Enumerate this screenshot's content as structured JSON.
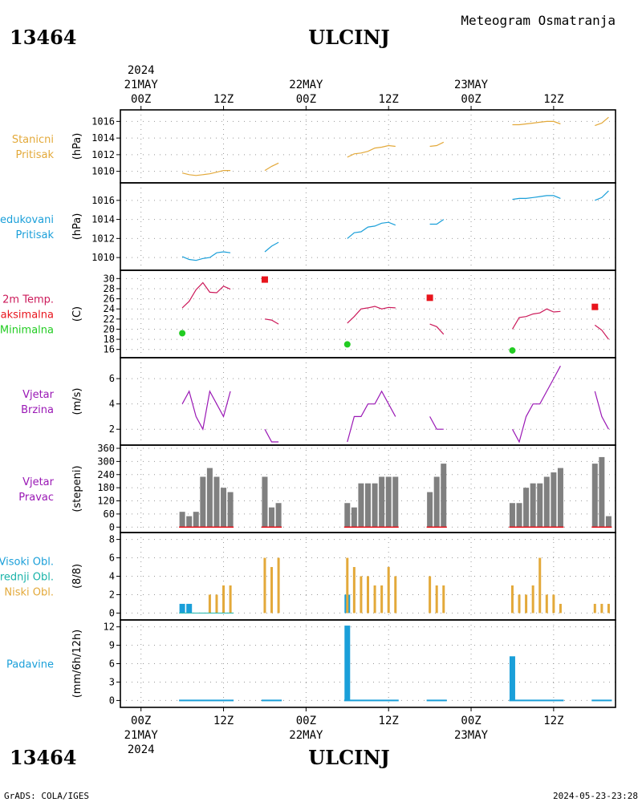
{
  "header": {
    "station_id": "13464",
    "station_name": "ULCINJ",
    "product": "Meteogram Osmatranja"
  },
  "footer": {
    "station_id": "13464",
    "station_name": "ULCINJ",
    "credit": "GrADS: COLA/IGES",
    "timestamp": "2024-05-23-23:28"
  },
  "time_axis": {
    "top_year": "2024",
    "ticks": [
      {
        "t": 0,
        "label": "00Z",
        "date": "21MAY",
        "year": "2024"
      },
      {
        "t": 12,
        "label": "12Z"
      },
      {
        "t": 24,
        "label": "00Z",
        "date": "22MAY"
      },
      {
        "t": 36,
        "label": "12Z"
      },
      {
        "t": 48,
        "label": "00Z",
        "date": "23MAY"
      },
      {
        "t": 60,
        "label": "12Z"
      }
    ],
    "range": [
      -3,
      69
    ],
    "bottom_year": "2024"
  },
  "colors": {
    "orange": "#e3a93a",
    "cyan": "#1a9fd9",
    "magenta": "#cc1a5a",
    "red": "#e8141c",
    "green": "#22cc22",
    "purple": "#9a18b5",
    "teal": "#18b3a8",
    "gray": "#808080"
  },
  "chart_data": [
    {
      "id": "pressure_station",
      "type": "line",
      "labels": [
        "Stanicni",
        "Pritisak"
      ],
      "label_color": "orange",
      "ylabel": "(hPa)",
      "ylim": [
        1009,
        1017
      ],
      "yticks": [
        1010,
        1012,
        1014,
        1016
      ],
      "grid": true,
      "series": [
        {
          "color": "orange",
          "segments": [
            [
              [
                6,
                1009.8
              ],
              [
                7,
                1009.6
              ],
              [
                8,
                1009.5
              ],
              [
                9,
                1009.6
              ],
              [
                10,
                1009.7
              ],
              [
                11,
                1009.9
              ],
              [
                12,
                1010.1
              ],
              [
                13,
                1010.1
              ]
            ],
            [
              [
                18,
                1010.1
              ],
              [
                19,
                1010.6
              ],
              [
                20,
                1011.0
              ]
            ],
            [
              [
                30,
                1011.7
              ],
              [
                31,
                1012.1
              ],
              [
                32,
                1012.2
              ],
              [
                33,
                1012.4
              ],
              [
                34,
                1012.8
              ],
              [
                35,
                1012.9
              ],
              [
                36,
                1013.1
              ],
              [
                37,
                1013.0
              ]
            ],
            [
              [
                42,
                1013.0
              ],
              [
                43,
                1013.1
              ],
              [
                44,
                1013.5
              ]
            ],
            [
              [
                54,
                1015.6
              ],
              [
                55,
                1015.6
              ],
              [
                56,
                1015.7
              ],
              [
                57,
                1015.8
              ],
              [
                58,
                1015.9
              ],
              [
                59,
                1016.0
              ],
              [
                60,
                1016.0
              ],
              [
                61,
                1015.7
              ]
            ],
            [
              [
                66,
                1015.5
              ],
              [
                67,
                1015.8
              ],
              [
                68,
                1016.5
              ]
            ]
          ]
        }
      ]
    },
    {
      "id": "pressure_reduced",
      "type": "line",
      "labels": [
        "Redukovani",
        "Pritisak"
      ],
      "label_color": "cyan",
      "ylabel": "(hPa)",
      "ylim": [
        1009,
        1017.5
      ],
      "yticks": [
        1010,
        1012,
        1014,
        1016
      ],
      "grid": true,
      "series": [
        {
          "color": "cyan",
          "segments": [
            [
              [
                6,
                1010.1
              ],
              [
                7,
                1009.8
              ],
              [
                8,
                1009.7
              ],
              [
                9,
                1009.9
              ],
              [
                10,
                1010.0
              ],
              [
                11,
                1010.5
              ],
              [
                12,
                1010.6
              ],
              [
                13,
                1010.5
              ]
            ],
            [
              [
                18,
                1010.6
              ],
              [
                19,
                1011.2
              ],
              [
                20,
                1011.6
              ]
            ],
            [
              [
                30,
                1012.0
              ],
              [
                31,
                1012.6
              ],
              [
                32,
                1012.7
              ],
              [
                33,
                1013.2
              ],
              [
                34,
                1013.3
              ],
              [
                35,
                1013.6
              ],
              [
                36,
                1013.7
              ],
              [
                37,
                1013.4
              ]
            ],
            [
              [
                42,
                1013.5
              ],
              [
                43,
                1013.5
              ],
              [
                44,
                1014.0
              ]
            ],
            [
              [
                54,
                1016.1
              ],
              [
                55,
                1016.2
              ],
              [
                56,
                1016.2
              ],
              [
                57,
                1016.3
              ],
              [
                58,
                1016.4
              ],
              [
                59,
                1016.5
              ],
              [
                60,
                1016.5
              ],
              [
                61,
                1016.2
              ]
            ],
            [
              [
                66,
                1016.0
              ],
              [
                67,
                1016.3
              ],
              [
                68,
                1017.0
              ]
            ]
          ]
        }
      ]
    },
    {
      "id": "temperature",
      "type": "line",
      "labels": [
        "2m Temp.",
        "Maksimalna",
        "Minimalna"
      ],
      "label_colors": [
        "magenta",
        "red",
        "green"
      ],
      "ylabel": "(C)",
      "ylim": [
        15,
        31
      ],
      "yticks": [
        16,
        18,
        20,
        22,
        24,
        26,
        28,
        30
      ],
      "grid": true,
      "series": [
        {
          "name": "2m Temp.",
          "color": "magenta",
          "segments": [
            [
              [
                6,
                24.2
              ],
              [
                7,
                25.5
              ],
              [
                8,
                27.8
              ],
              [
                9,
                29.2
              ],
              [
                10,
                27.3
              ],
              [
                11,
                27.2
              ],
              [
                12,
                28.5
              ],
              [
                13,
                27.9
              ]
            ],
            [
              [
                18,
                22.0
              ],
              [
                19,
                21.8
              ],
              [
                20,
                21.0
              ]
            ],
            [
              [
                30,
                21.2
              ],
              [
                31,
                22.5
              ],
              [
                32,
                24.0
              ],
              [
                33,
                24.2
              ],
              [
                34,
                24.5
              ],
              [
                35,
                24.0
              ],
              [
                36,
                24.3
              ],
              [
                37,
                24.2
              ]
            ],
            [
              [
                42,
                21.0
              ],
              [
                43,
                20.5
              ],
              [
                44,
                19.0
              ]
            ],
            [
              [
                54,
                20.0
              ],
              [
                55,
                22.3
              ],
              [
                56,
                22.5
              ],
              [
                57,
                23.0
              ],
              [
                58,
                23.2
              ],
              [
                59,
                24.0
              ],
              [
                60,
                23.4
              ],
              [
                61,
                23.5
              ]
            ],
            [
              [
                66,
                20.8
              ],
              [
                67,
                19.8
              ],
              [
                68,
                18.0
              ]
            ]
          ]
        },
        {
          "name": "Maksimalna",
          "color": "red",
          "marker": "square",
          "points": [
            [
              18,
              29.8
            ],
            [
              42,
              26.2
            ],
            [
              66,
              24.4
            ]
          ]
        },
        {
          "name": "Minimalna",
          "color": "green",
          "marker": "circle",
          "points": [
            [
              6,
              19.2
            ],
            [
              30,
              17.0
            ],
            [
              54,
              15.8
            ]
          ]
        }
      ]
    },
    {
      "id": "wind_speed",
      "type": "line",
      "labels": [
        "Vjetar",
        "Brzina"
      ],
      "label_color": "purple",
      "ylabel": "(m/s)",
      "ylim": [
        1,
        7.4
      ],
      "yticks": [
        2,
        4,
        6
      ],
      "grid": true,
      "series": [
        {
          "color": "purple",
          "segments": [
            [
              [
                6,
                4
              ],
              [
                7,
                5
              ],
              [
                8,
                3
              ],
              [
                9,
                2
              ],
              [
                10,
                5
              ],
              [
                11,
                4
              ],
              [
                12,
                3
              ],
              [
                13,
                5
              ]
            ],
            [
              [
                18,
                2
              ],
              [
                19,
                1
              ],
              [
                20,
                1
              ]
            ],
            [
              [
                30,
                1
              ],
              [
                31,
                3
              ],
              [
                32,
                3
              ],
              [
                33,
                4
              ],
              [
                34,
                4
              ],
              [
                35,
                5
              ],
              [
                36,
                4
              ],
              [
                37,
                3
              ]
            ],
            [
              [
                42,
                3
              ],
              [
                43,
                2
              ],
              [
                44,
                2
              ]
            ],
            [
              [
                54,
                2
              ],
              [
                55,
                1
              ],
              [
                56,
                3
              ],
              [
                57,
                4
              ],
              [
                58,
                4
              ],
              [
                59,
                5
              ],
              [
                60,
                6
              ],
              [
                61,
                7
              ]
            ],
            [
              [
                66,
                5
              ],
              [
                67,
                3
              ],
              [
                68,
                2
              ]
            ]
          ]
        }
      ]
    },
    {
      "id": "wind_direction",
      "type": "bar",
      "labels": [
        "Vjetar",
        "Pravac"
      ],
      "label_color": "purple",
      "ylabel": "(stepeni)",
      "ylim": [
        -10,
        360
      ],
      "yticks": [
        0,
        60,
        120,
        180,
        240,
        300,
        360
      ],
      "grid": true,
      "bar_color": "gray",
      "x": [
        6,
        7,
        8,
        9,
        10,
        11,
        12,
        13,
        18,
        19,
        20,
        30,
        31,
        32,
        33,
        34,
        35,
        36,
        37,
        42,
        43,
        44,
        54,
        55,
        56,
        57,
        58,
        59,
        60,
        61,
        66,
        67,
        68
      ],
      "values": [
        70,
        50,
        70,
        230,
        270,
        230,
        180,
        160,
        230,
        90,
        110,
        110,
        90,
        200,
        200,
        200,
        230,
        230,
        230,
        160,
        230,
        290,
        110,
        110,
        180,
        200,
        200,
        230,
        250,
        270,
        290,
        320,
        50
      ]
    },
    {
      "id": "clouds",
      "type": "bar",
      "labels": [
        "Visoki Obl.",
        "Srednji Obl.",
        "Niski Obl."
      ],
      "label_colors": [
        "cyan",
        "teal",
        "orange"
      ],
      "ylabel": "(8/8)",
      "ylim": [
        -0.4,
        8.4
      ],
      "yticks": [
        0,
        2,
        4,
        6,
        8
      ],
      "grid": true,
      "series": [
        {
          "name": "Visoki Obl.",
          "color": "cyan",
          "x": [
            6,
            7,
            30
          ],
          "values": [
            1,
            1,
            2
          ]
        },
        {
          "name": "Niski Obl.",
          "color": "orange",
          "x": [
            10,
            11,
            12,
            13,
            18,
            19,
            20,
            30,
            31,
            32,
            33,
            34,
            35,
            36,
            37,
            42,
            43,
            44,
            54,
            55,
            56,
            57,
            58,
            59,
            60,
            61,
            66,
            67,
            68
          ],
          "values": [
            2,
            2,
            3,
            3,
            6,
            5,
            6,
            6,
            5,
            4,
            4,
            3,
            3,
            5,
            4,
            4,
            3,
            3,
            3,
            2,
            2,
            3,
            6,
            2,
            2,
            1,
            1,
            1,
            1
          ]
        }
      ]
    },
    {
      "id": "precipitation",
      "type": "bar",
      "labels": [
        "Padavine"
      ],
      "label_color": "cyan",
      "ylabel": "(mm/6h/12h)",
      "ylim": [
        -0.6,
        12.6
      ],
      "yticks": [
        0,
        3,
        6,
        9,
        12
      ],
      "grid": true,
      "bar_color": "cyan",
      "x": [
        30,
        54
      ],
      "values": [
        12.2,
        7.2
      ]
    }
  ]
}
